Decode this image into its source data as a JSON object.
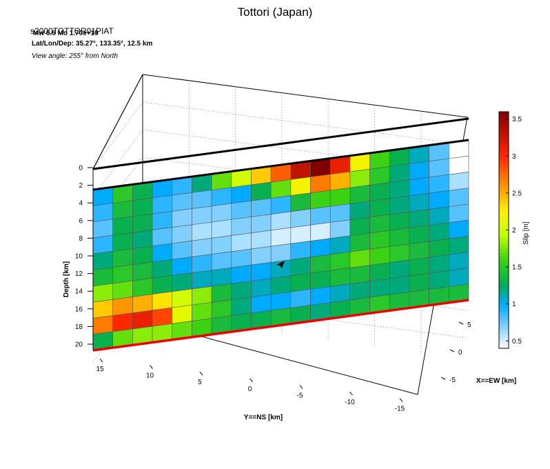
{
  "chart_data": {
    "type": "heatmap",
    "title": "Tottori (Japan)",
    "event_id": "s2000TOTTOR01PIAT",
    "magnitude_line": "Mw 6.6    Mo 1.70e+19",
    "location_line": "Lat/Lon/Dep: 35.27°, 133.35°, 12.5 km",
    "view_line": "View angle: 255° from North",
    "depth_label": "Depth [km]",
    "ns_label": "Y==NS [km]",
    "ew_label": "X==EW [km]",
    "colorbar_label": "Slip [m]",
    "depth_ticks": [
      "0",
      "2",
      "4",
      "6",
      "8",
      "10",
      "12",
      "14",
      "16",
      "18",
      "20"
    ],
    "ns_ticks": [
      "15",
      "10",
      "5",
      "0",
      "-5",
      "-10",
      "-15"
    ],
    "ew_ticks": [
      "5",
      "0",
      "-5"
    ],
    "colorbar_ticks": [
      "0.5",
      "1",
      "1.5",
      "2",
      "2.5",
      "3",
      "3.5"
    ],
    "colorbar_range": [
      0.4,
      3.6
    ],
    "grid_rows": 10,
    "grid_cols": 19,
    "slip": [
      [
        1.0,
        1.5,
        1.3,
        1.0,
        0.9,
        1.2,
        1.7,
        2.0,
        2.4,
        2.8,
        3.3,
        3.6,
        3.1,
        2.2,
        1.6,
        1.3,
        1.1,
        0.8,
        0.4
      ],
      [
        0.9,
        1.4,
        1.3,
        0.9,
        0.8,
        0.8,
        0.9,
        1.0,
        1.3,
        1.7,
        2.2,
        2.7,
        2.5,
        1.8,
        1.5,
        1.2,
        1.0,
        0.8,
        0.4
      ],
      [
        0.8,
        1.3,
        1.3,
        0.9,
        0.7,
        0.7,
        0.7,
        0.8,
        0.8,
        0.9,
        1.4,
        1.6,
        1.6,
        1.4,
        1.3,
        1.2,
        1.0,
        0.9,
        0.6
      ],
      [
        0.9,
        1.3,
        1.2,
        0.8,
        0.7,
        0.6,
        0.6,
        0.7,
        0.7,
        0.6,
        0.7,
        0.8,
        0.8,
        1.2,
        1.3,
        1.2,
        1.1,
        1.0,
        0.8
      ],
      [
        1.2,
        1.4,
        1.3,
        1.0,
        0.8,
        0.7,
        0.7,
        0.6,
        0.6,
        0.5,
        0.5,
        0.5,
        0.7,
        1.3,
        1.4,
        1.3,
        1.2,
        1.1,
        0.8
      ],
      [
        1.4,
        1.5,
        1.4,
        1.2,
        1.0,
        0.9,
        0.8,
        0.8,
        0.7,
        0.7,
        0.9,
        1.0,
        1.1,
        1.4,
        1.5,
        1.4,
        1.3,
        1.2,
        1.0
      ],
      [
        1.8,
        1.7,
        1.5,
        1.3,
        1.2,
        1.1,
        1.1,
        1.0,
        1.0,
        1.1,
        1.2,
        1.4,
        1.5,
        1.7,
        1.6,
        1.5,
        1.4,
        1.3,
        1.2
      ],
      [
        2.4,
        2.6,
        2.5,
        2.3,
        2.0,
        1.8,
        1.4,
        1.2,
        1.1,
        1.2,
        1.3,
        1.3,
        1.4,
        1.4,
        1.3,
        1.2,
        1.3,
        1.2,
        1.1
      ],
      [
        2.7,
        3.0,
        3.1,
        2.9,
        2.1,
        1.7,
        1.5,
        1.2,
        1.0,
        1.0,
        0.9,
        1.0,
        1.1,
        1.2,
        1.2,
        1.2,
        1.3,
        1.2,
        1.1
      ],
      [
        1.3,
        1.7,
        1.8,
        1.8,
        1.7,
        1.6,
        1.4,
        1.3,
        1.3,
        1.4,
        1.3,
        1.2,
        1.3,
        1.4,
        1.5,
        1.4,
        1.4,
        1.4,
        1.4
      ]
    ]
  }
}
